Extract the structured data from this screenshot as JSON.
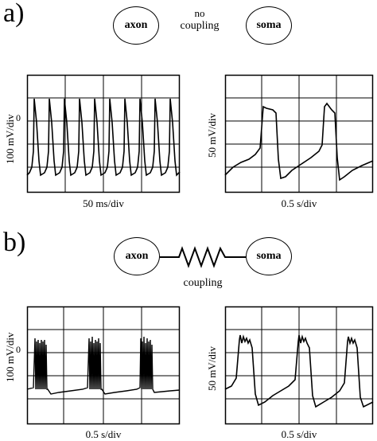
{
  "panel_a": {
    "label": "a)",
    "node_left": "axon",
    "node_right": "soma",
    "coupling_text_line1": "no",
    "coupling_text_line2": "coupling",
    "left_plot": {
      "ylabel": "100 mV/div",
      "zero_tick": "0",
      "xlabel": "50 ms/div"
    },
    "right_plot": {
      "ylabel": "50 mV/div",
      "xlabel": "0.5 s/div"
    }
  },
  "panel_b": {
    "label": "b)",
    "node_left": "axon",
    "node_right": "soma",
    "coupling_text": "coupling",
    "left_plot": {
      "ylabel": "100 mV/div",
      "zero_tick": "0",
      "xlabel": "0.5 s/div"
    },
    "right_plot": {
      "ylabel": "50 mV/div",
      "xlabel": "0.5 s/div"
    }
  }
}
